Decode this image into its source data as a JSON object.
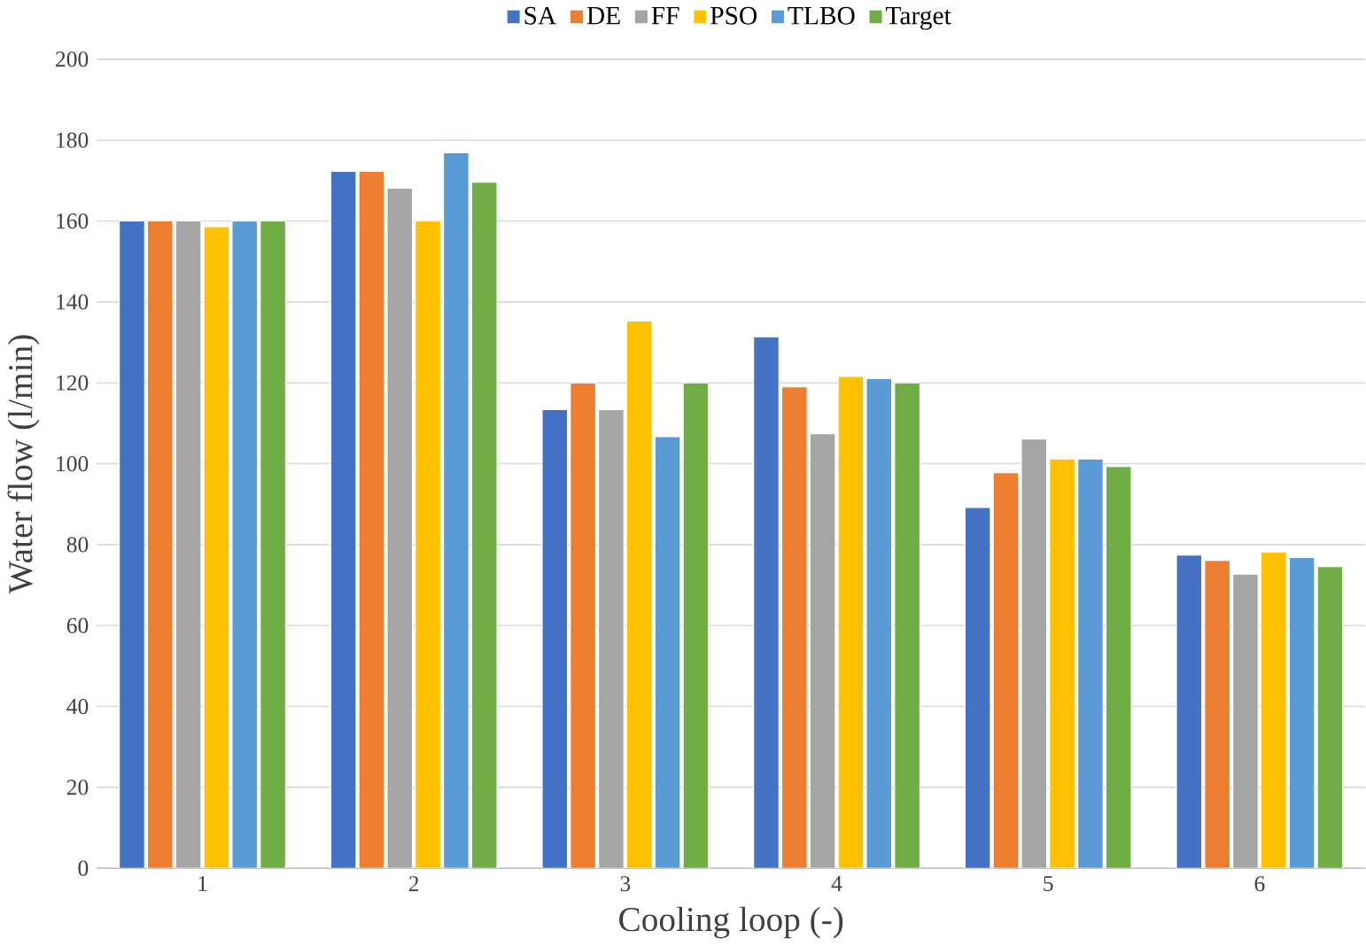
{
  "chart_data": {
    "type": "bar",
    "xlabel": "Cooling loop (-)",
    "ylabel": "Water flow (l/min)",
    "categories": [
      "1",
      "2",
      "3",
      "4",
      "5",
      "6"
    ],
    "series": [
      {
        "name": "SA",
        "color": "#4472c4",
        "values": [
          160,
          172.3,
          113.4,
          131.4,
          89.2,
          77.4
        ]
      },
      {
        "name": "DE",
        "color": "#ed7d31",
        "values": [
          160,
          172.3,
          120,
          119,
          97.8,
          76.1
        ]
      },
      {
        "name": "FF",
        "color": "#a5a5a5",
        "values": [
          160,
          168.1,
          113.4,
          107.4,
          106.1,
          72.7
        ]
      },
      {
        "name": "PSO",
        "color": "#ffc000",
        "values": [
          158.6,
          160,
          135.3,
          121.6,
          101.2,
          78.2
        ]
      },
      {
        "name": "TLBO",
        "color": "#5b9bd5",
        "values": [
          160,
          176.9,
          106.7,
          121.1,
          101.2,
          76.8
        ]
      },
      {
        "name": "Target",
        "color": "#70ad47",
        "values": [
          160,
          169.6,
          120,
          120,
          99.3,
          74.6
        ]
      }
    ],
    "ylim": [
      0,
      200
    ],
    "yticks": [
      0,
      20,
      40,
      60,
      80,
      100,
      120,
      140,
      160,
      180,
      200
    ],
    "grid": "y",
    "legend": "top"
  }
}
